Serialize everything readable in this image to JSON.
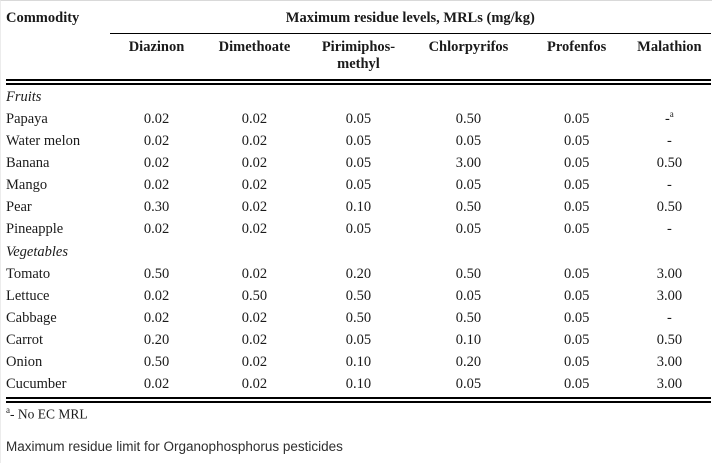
{
  "table": {
    "commodity_header": "Commodity",
    "group_header": "Maximum residue levels, MRLs (mg/kg)",
    "columns": [
      "Diazinon",
      "Dimethoate",
      "Pirimiphos-\nmethyl",
      "Chlorpyrifos",
      "Profenfos",
      "Malathion"
    ],
    "sections": [
      {
        "label": "Fruits",
        "rows": [
          {
            "commodity": "Papaya",
            "values": [
              "0.02",
              "0.02",
              "0.05",
              "0.50",
              "0.05",
              {
                "v": "-",
                "sup": "a"
              }
            ]
          },
          {
            "commodity": "Water melon",
            "values": [
              "0.02",
              "0.02",
              "0.05",
              "0.05",
              "0.05",
              "-"
            ]
          },
          {
            "commodity": "Banana",
            "values": [
              "0.02",
              "0.02",
              "0.05",
              "3.00",
              "0.05",
              "0.50"
            ]
          },
          {
            "commodity": "Mango",
            "values": [
              "0.02",
              "0.02",
              "0.05",
              "0.05",
              "0.05",
              "-"
            ]
          },
          {
            "commodity": "Pear",
            "values": [
              "0.30",
              "0.02",
              "0.10",
              "0.50",
              "0.05",
              "0.50"
            ]
          },
          {
            "commodity": "Pineapple",
            "values": [
              "0.02",
              "0.02",
              "0.05",
              "0.05",
              "0.05",
              "-"
            ]
          }
        ]
      },
      {
        "label": "Vegetables",
        "rows": [
          {
            "commodity": "Tomato",
            "values": [
              "0.50",
              "0.02",
              "0.20",
              "0.50",
              "0.05",
              "3.00"
            ]
          },
          {
            "commodity": "Lettuce",
            "values": [
              "0.02",
              "0.50",
              "0.50",
              "0.05",
              "0.05",
              "3.00"
            ]
          },
          {
            "commodity": "Cabbage",
            "values": [
              "0.02",
              "0.02",
              "0.50",
              "0.50",
              "0.05",
              "-"
            ]
          },
          {
            "commodity": "Carrot",
            "values": [
              "0.20",
              "0.02",
              "0.05",
              "0.10",
              "0.05",
              "0.50"
            ]
          },
          {
            "commodity": "Onion",
            "values": [
              "0.50",
              "0.02",
              "0.10",
              "0.20",
              "0.05",
              "3.00"
            ]
          },
          {
            "commodity": "Cucumber",
            "values": [
              "0.02",
              "0.02",
              "0.10",
              "0.05",
              "0.05",
              "3.00"
            ]
          }
        ]
      }
    ]
  },
  "footnote": {
    "sup": "a",
    "text": "- No EC MRL"
  },
  "caption": "Maximum residue limit for Organophosphorus pesticides",
  "colors": {
    "background": "#ffffff",
    "text": "#1a1a1a",
    "rules": "#000000"
  }
}
